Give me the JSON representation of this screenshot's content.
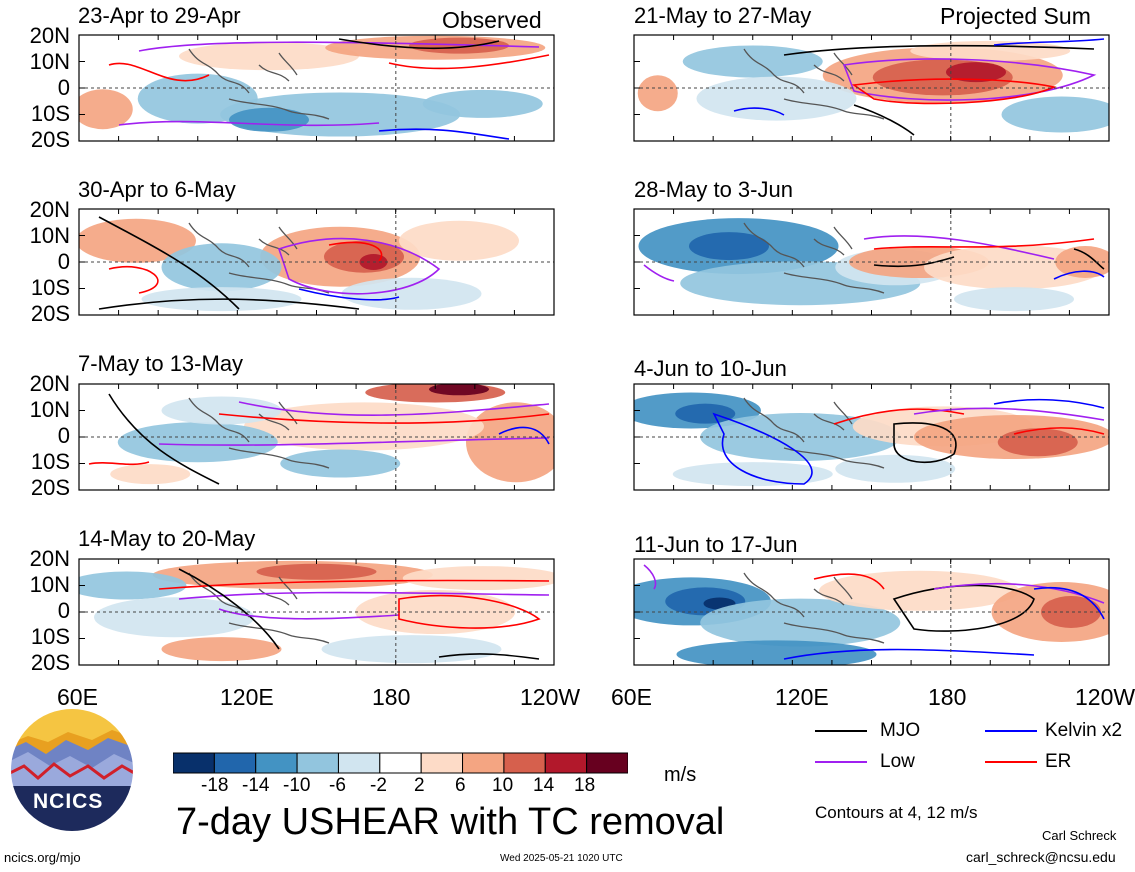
{
  "panels": {
    "observed_label": "Observed",
    "projected_label": "Projected Sum",
    "left": [
      "23-Apr to 29-Apr",
      "30-Apr to 6-May",
      "7-May to 13-May",
      "14-May to 20-May"
    ],
    "right": [
      "21-May to 27-May",
      "28-May to 3-Jun",
      "4-Jun to 10-Jun",
      "11-Jun to 17-Jun"
    ]
  },
  "axes": {
    "lat_labels": [
      "20N",
      "10N",
      "0",
      "10S",
      "20S"
    ],
    "lon_labels": [
      "60E",
      "120E",
      "180",
      "120W"
    ]
  },
  "colorbar": {
    "ticks": [
      "-18",
      "-14",
      "-10",
      "-6",
      "-2",
      "2",
      "6",
      "10",
      "14",
      "18"
    ],
    "units": "m/s",
    "colors": [
      "#08306b",
      "#2166ac",
      "#4393c3",
      "#92c5de",
      "#d1e5f0",
      "#ffffff",
      "#fddbc7",
      "#f4a582",
      "#d6604d",
      "#b2182b",
      "#67001f"
    ]
  },
  "legend": {
    "items": [
      {
        "label": "MJO",
        "color": "#000000"
      },
      {
        "label": "Kelvin x2",
        "color": "#0000ff"
      },
      {
        "label": "Low",
        "color": "#a020f0"
      },
      {
        "label": "ER",
        "color": "#ff0000"
      }
    ],
    "contours_note": "Contours at 4, 12 m/s"
  },
  "title": "7-day USHEAR with TC removal",
  "logo_text": "NCICS",
  "footer": {
    "url": "ncics.org/mjo",
    "timestamp": "Wed 2025-05-21 1020 UTC",
    "author": "Carl Schreck",
    "email": "carl_schreck@ncsu.edu"
  },
  "chart_data": {
    "type": "heatmap",
    "variable": "7-day USHEAR with TC removal",
    "units": "m/s",
    "x_range": [
      "60E",
      "120W"
    ],
    "y_range": [
      "20S",
      "20N"
    ],
    "contour_levels": [
      4,
      12
    ],
    "panels": [
      {
        "period": "23-Apr to 29-Apr",
        "group": "Observed"
      },
      {
        "period": "30-Apr to 6-May",
        "group": "Observed"
      },
      {
        "period": "7-May to 13-May",
        "group": "Observed"
      },
      {
        "period": "14-May to 20-May",
        "group": "Observed"
      },
      {
        "period": "21-May to 27-May",
        "group": "Projected Sum"
      },
      {
        "period": "28-May to 3-Jun",
        "group": "Projected Sum"
      },
      {
        "period": "4-Jun to 10-Jun",
        "group": "Projected Sum"
      },
      {
        "period": "11-Jun to 17-Jun",
        "group": "Projected Sum"
      }
    ]
  }
}
